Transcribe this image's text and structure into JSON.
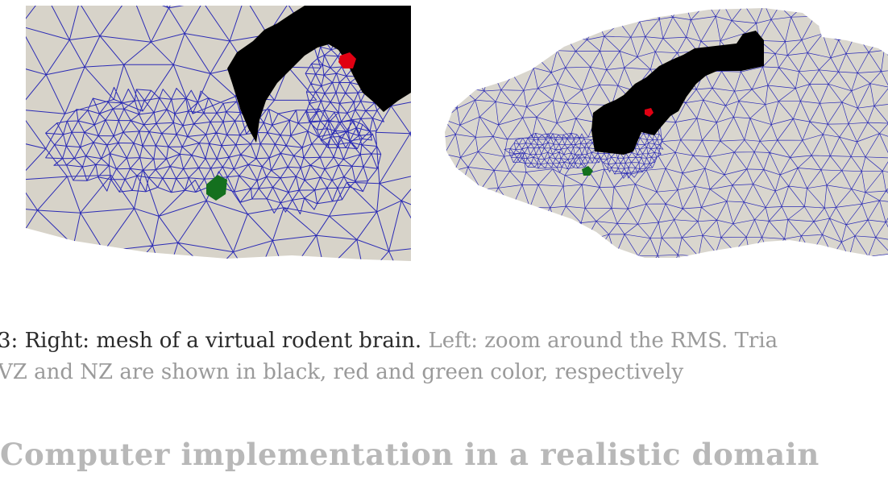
{
  "figure": {
    "left_panel": {
      "description_name": "zoom around the RMS"
    },
    "right_panel": {
      "description_name": "mesh of a virtual rodent brain"
    },
    "colors": {
      "background": "#d7d3c9",
      "mesh_edges": "#2b2bb5",
      "rms_region": "#000000",
      "svz_region": "#e00012",
      "nz_region": "#14701e"
    }
  },
  "caption": {
    "line1_prefix": "3: Right: mesh of a virtual rodent brain.",
    "line1_rest": " Left: zoom around the RMS. Tria",
    "line2": "VZ and NZ are shown in black, red and green color, respectively"
  },
  "section": {
    "title": "Computer implementation in a realistic domain"
  }
}
